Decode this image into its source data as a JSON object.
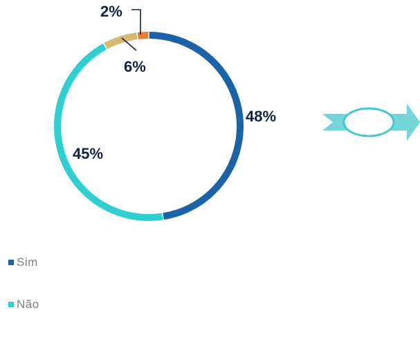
{
  "chart_data": {
    "type": "pie",
    "donut": true,
    "slices": [
      {
        "label": "48%",
        "value": 48,
        "color": "#1a63a8"
      },
      {
        "label": "45%",
        "value": 45,
        "color": "#2ecfd1"
      },
      {
        "label": "6%",
        "value": 6,
        "color": "#d6b871"
      },
      {
        "label": "2%",
        "value": 2,
        "color": "#ea7d35"
      }
    ],
    "legend": [
      {
        "name": "Sim",
        "color": "#1a63a8"
      },
      {
        "name": "Não",
        "color": "#2ecfd1"
      }
    ],
    "legend_position": "bottom-left"
  },
  "decoration": {
    "arrow_icon_color": "#45c8cb"
  }
}
